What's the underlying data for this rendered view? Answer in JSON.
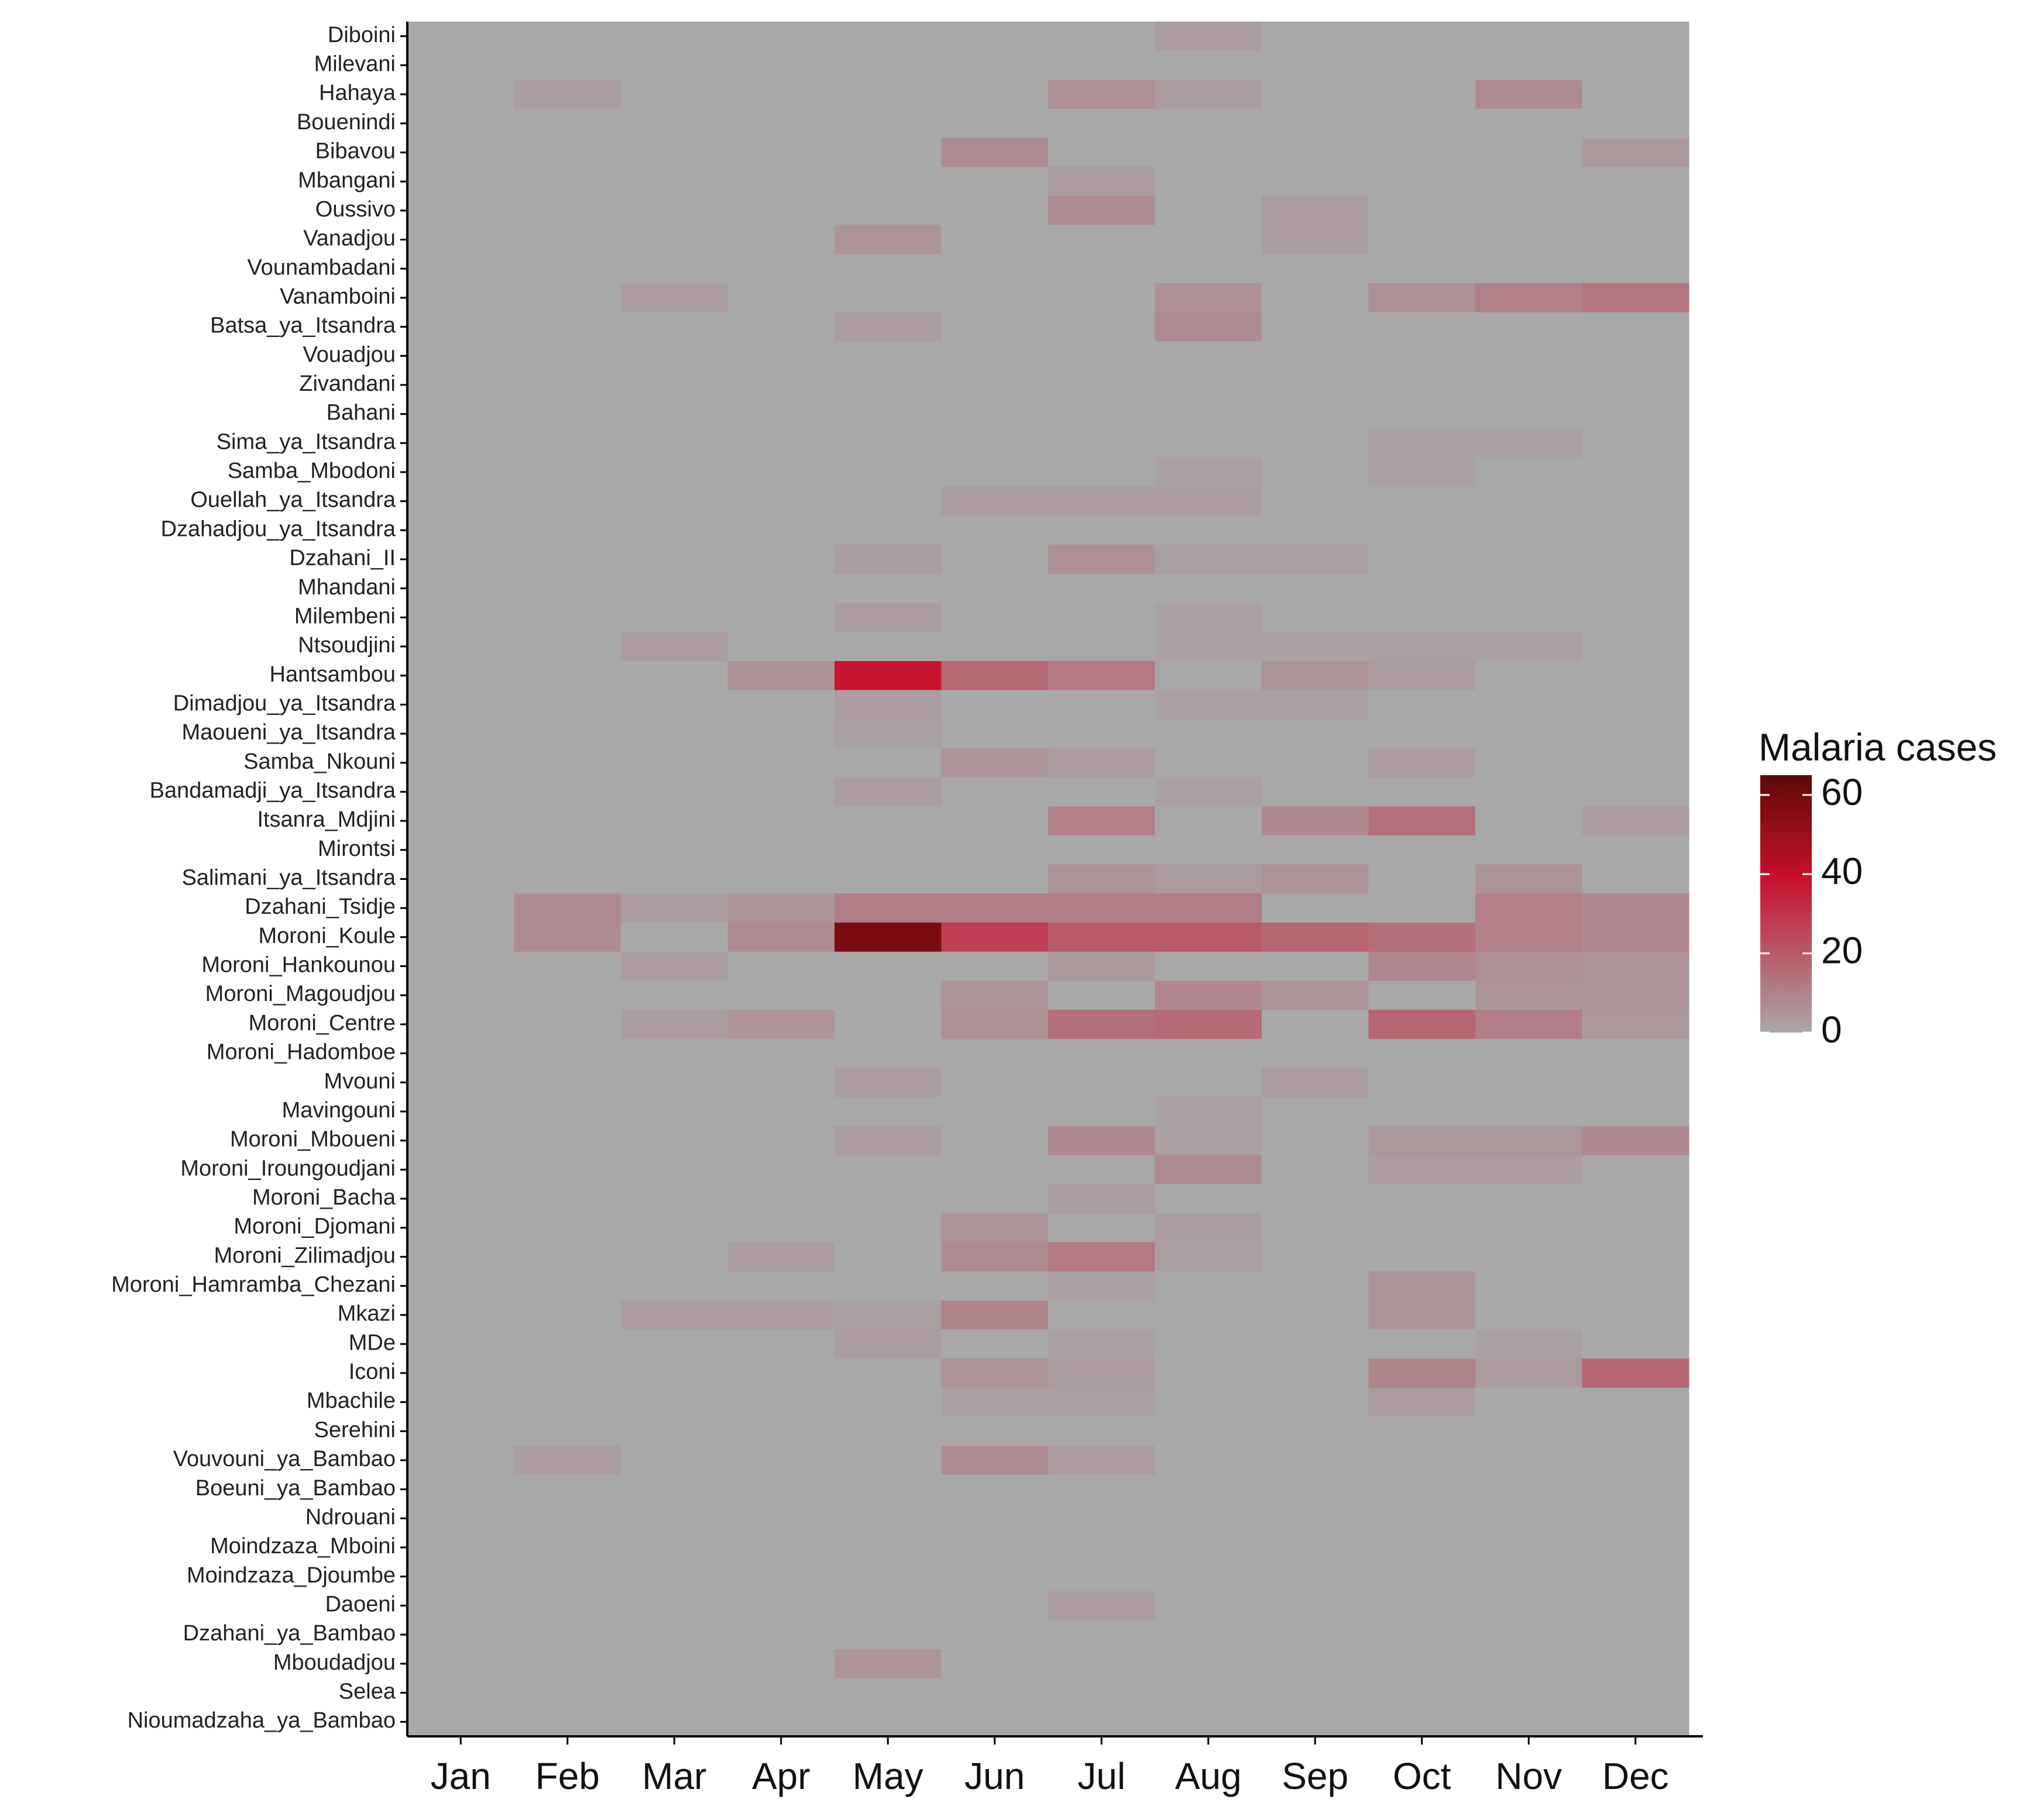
{
  "chart_data": {
    "type": "heatmap",
    "xlabel": "",
    "ylabel": "",
    "months": [
      "Jan",
      "Feb",
      "Mar",
      "Apr",
      "May",
      "Jun",
      "Jul",
      "Aug",
      "Sep",
      "Oct",
      "Nov",
      "Dec"
    ],
    "locations": [
      "Diboini",
      "Milevani",
      "Hahaya",
      "Bouenindi",
      "Bibavou",
      "Mbangani",
      "Oussivo",
      "Vanadjou",
      "Vounambadani",
      "Vanamboini",
      "Batsa_ya_Itsandra",
      "Vouadjou",
      "Zivandani",
      "Bahani",
      "Sima_ya_Itsandra",
      "Samba_Mbodoni",
      "Ouellah_ya_Itsandra",
      "Dzahadjou_ya_Itsandra",
      "Dzahani_II",
      "Mhandani",
      "Milembeni",
      "Ntsoudjini",
      "Hantsambou",
      "Dimadjou_ya_Itsandra",
      "Maoueni_ya_Itsandra",
      "Samba_Nkouni",
      "Bandamadji_ya_Itsandra",
      "Itsanra_Mdjini",
      "Mirontsi",
      "Salimani_ya_Itsandra",
      "Dzahani_Tsidje",
      "Moroni_Koule",
      "Moroni_Hankounou",
      "Moroni_Magoudjou",
      "Moroni_Centre",
      "Moroni_Hadomboe",
      "Mvouni",
      "Mavingouni",
      "Moroni_Mboueni",
      "Moroni_Iroungoudjani",
      "Moroni_Bacha",
      "Moroni_Djomani",
      "Moroni_Zilimadjou",
      "Moroni_Hamramba_Chezani",
      "Mkazi",
      "MDe",
      "Iconi",
      "Mbachile",
      "Serehini",
      "Vouvouni_ya_Bambao",
      "Boeuni_ya_Bambao",
      "Ndrouani",
      "Moindzaza_Mboini",
      "Moindzaza_Djoumbe",
      "Daoeni",
      "Dzahani_ya_Bambao",
      "Mboudadjou",
      "Selea",
      "Nioumadzaha_ya_Bambao"
    ],
    "values": [
      [
        0,
        0,
        0,
        0,
        0,
        0,
        0,
        3,
        0,
        0,
        0,
        0
      ],
      [
        0,
        0,
        0,
        0,
        0,
        0,
        0,
        0,
        0,
        0,
        0,
        0
      ],
      [
        0,
        3,
        0,
        0,
        0,
        0,
        6,
        3,
        0,
        0,
        7,
        0
      ],
      [
        0,
        0,
        0,
        0,
        0,
        0,
        0,
        0,
        0,
        0,
        0,
        0
      ],
      [
        0,
        0,
        0,
        0,
        0,
        7,
        0,
        0,
        0,
        0,
        0,
        4
      ],
      [
        0,
        0,
        0,
        0,
        0,
        0,
        3,
        0,
        0,
        0,
        0,
        0
      ],
      [
        0,
        0,
        0,
        0,
        0,
        0,
        7,
        0,
        3,
        0,
        0,
        0
      ],
      [
        0,
        0,
        0,
        0,
        5,
        0,
        0,
        0,
        3,
        0,
        0,
        0
      ],
      [
        0,
        0,
        0,
        0,
        0,
        0,
        0,
        0,
        0,
        0,
        0,
        0
      ],
      [
        0,
        0,
        3,
        0,
        0,
        0,
        0,
        6,
        0,
        6,
        10,
        13
      ],
      [
        0,
        0,
        0,
        0,
        3,
        0,
        0,
        7,
        0,
        0,
        0,
        0
      ],
      [
        0,
        0,
        0,
        0,
        0,
        0,
        0,
        0,
        0,
        0,
        0,
        0
      ],
      [
        0,
        0,
        0,
        0,
        0,
        0,
        0,
        0,
        0,
        0,
        0,
        0
      ],
      [
        0,
        0,
        0,
        0,
        0,
        0,
        0,
        0,
        0,
        0,
        0,
        0
      ],
      [
        0,
        0,
        0,
        0,
        0,
        0,
        0,
        0,
        0,
        2,
        2,
        0
      ],
      [
        0,
        0,
        0,
        0,
        0,
        0,
        0,
        2,
        0,
        2,
        0,
        0
      ],
      [
        0,
        0,
        0,
        0,
        0,
        3,
        3,
        3,
        0,
        0,
        0,
        0
      ],
      [
        0,
        0,
        0,
        0,
        0,
        0,
        0,
        0,
        0,
        0,
        0,
        0
      ],
      [
        0,
        0,
        0,
        0,
        3,
        0,
        6,
        2,
        2,
        0,
        0,
        0
      ],
      [
        0,
        0,
        0,
        0,
        0,
        0,
        0,
        0,
        0,
        0,
        0,
        0
      ],
      [
        0,
        0,
        0,
        0,
        3,
        0,
        0,
        2,
        0,
        0,
        0,
        0
      ],
      [
        0,
        0,
        3,
        0,
        0,
        0,
        0,
        2,
        2,
        2,
        2,
        0
      ],
      [
        0,
        0,
        0,
        6,
        38,
        16,
        12,
        0,
        5,
        3,
        0,
        0
      ],
      [
        0,
        0,
        0,
        0,
        3,
        0,
        0,
        2,
        2,
        0,
        0,
        0
      ],
      [
        0,
        0,
        0,
        0,
        2,
        0,
        0,
        0,
        0,
        0,
        0,
        0
      ],
      [
        0,
        0,
        0,
        0,
        0,
        5,
        3,
        0,
        0,
        3,
        0,
        0
      ],
      [
        0,
        0,
        0,
        0,
        3,
        0,
        0,
        2,
        0,
        0,
        0,
        0
      ],
      [
        0,
        0,
        0,
        0,
        0,
        0,
        10,
        0,
        8,
        14,
        0,
        3
      ],
      [
        0,
        0,
        0,
        0,
        0,
        0,
        0,
        0,
        0,
        0,
        0,
        0
      ],
      [
        0,
        0,
        0,
        0,
        0,
        0,
        5,
        3,
        5,
        0,
        5,
        0
      ],
      [
        0,
        7,
        3,
        5,
        11,
        11,
        11,
        11,
        0,
        0,
        10,
        8
      ],
      [
        0,
        7,
        0,
        7,
        58,
        27,
        20,
        20,
        17,
        15,
        10,
        8
      ],
      [
        0,
        0,
        3,
        0,
        0,
        0,
        4,
        0,
        0,
        8,
        6,
        5
      ],
      [
        0,
        0,
        0,
        0,
        0,
        5,
        0,
        8,
        5,
        0,
        5,
        5
      ],
      [
        0,
        0,
        3,
        5,
        0,
        6,
        15,
        16,
        0,
        17,
        11,
        4
      ],
      [
        0,
        0,
        0,
        0,
        0,
        0,
        0,
        0,
        0,
        0,
        0,
        0
      ],
      [
        0,
        0,
        0,
        0,
        3,
        0,
        0,
        0,
        3,
        0,
        0,
        0
      ],
      [
        0,
        0,
        0,
        0,
        0,
        0,
        0,
        2,
        0,
        0,
        0,
        0
      ],
      [
        0,
        0,
        0,
        0,
        3,
        0,
        8,
        2,
        0,
        4,
        4,
        8
      ],
      [
        0,
        0,
        0,
        0,
        0,
        0,
        0,
        7,
        0,
        3,
        3,
        0
      ],
      [
        0,
        0,
        0,
        0,
        0,
        0,
        3,
        0,
        0,
        0,
        0,
        0
      ],
      [
        0,
        0,
        0,
        0,
        0,
        5,
        0,
        3,
        0,
        0,
        0,
        0
      ],
      [
        0,
        0,
        0,
        3,
        0,
        7,
        12,
        2,
        0,
        0,
        0,
        0
      ],
      [
        0,
        0,
        0,
        0,
        0,
        0,
        2,
        0,
        0,
        5,
        0,
        0
      ],
      [
        0,
        0,
        3,
        3,
        2,
        9,
        0,
        0,
        0,
        5,
        0,
        0
      ],
      [
        0,
        0,
        0,
        0,
        3,
        0,
        2,
        0,
        0,
        0,
        2,
        0
      ],
      [
        0,
        0,
        0,
        0,
        0,
        5,
        3,
        0,
        0,
        9,
        3,
        17
      ],
      [
        0,
        0,
        0,
        0,
        0,
        2,
        2,
        0,
        0,
        3,
        0,
        0
      ],
      [
        0,
        0,
        0,
        0,
        0,
        0,
        0,
        0,
        0,
        0,
        0,
        0
      ],
      [
        0,
        3,
        0,
        0,
        0,
        7,
        3,
        0,
        0,
        0,
        0,
        0
      ],
      [
        0,
        0,
        0,
        0,
        0,
        0,
        0,
        0,
        0,
        0,
        0,
        0
      ],
      [
        0,
        0,
        0,
        0,
        0,
        0,
        0,
        0,
        0,
        0,
        0,
        0
      ],
      [
        0,
        0,
        0,
        0,
        0,
        0,
        0,
        0,
        0,
        0,
        0,
        0
      ],
      [
        0,
        0,
        0,
        0,
        0,
        0,
        0,
        0,
        0,
        0,
        0,
        0
      ],
      [
        0,
        0,
        0,
        0,
        0,
        0,
        3,
        0,
        0,
        0,
        0,
        0
      ],
      [
        0,
        0,
        0,
        0,
        0,
        0,
        0,
        0,
        0,
        0,
        0,
        0
      ],
      [
        0,
        0,
        0,
        0,
        5,
        0,
        0,
        0,
        0,
        0,
        0,
        0
      ],
      [
        0,
        0,
        0,
        0,
        0,
        0,
        0,
        0,
        0,
        0,
        0,
        0
      ],
      [
        0,
        0,
        0,
        0,
        0,
        0,
        0,
        0,
        0,
        0,
        0,
        0
      ]
    ],
    "legend": {
      "title": "Malaria cases",
      "ticks": [
        0,
        20,
        40,
        60
      ],
      "range": [
        0,
        65
      ],
      "colors": [
        "#a8a8a8",
        "#c8102e",
        "#5c0a08"
      ],
      "placement": "right"
    },
    "panel_background": "#a8a8a8",
    "grid": false
  }
}
